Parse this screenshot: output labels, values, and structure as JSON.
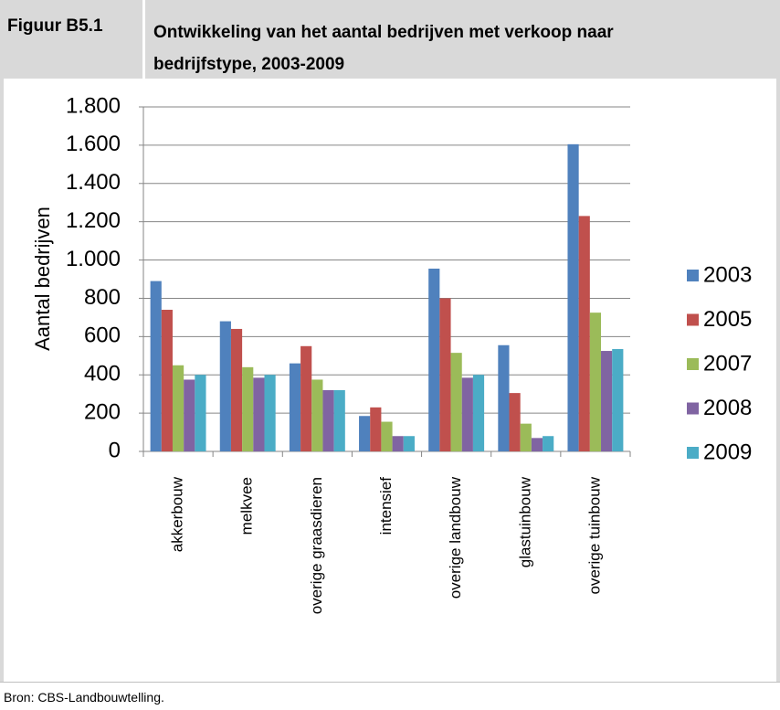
{
  "header": {
    "figure_label": "Figuur B5.1"
  },
  "footer": {
    "source": "Bron: CBS-Landbouwtelling."
  },
  "chart_data": {
    "type": "bar",
    "title": "Ontwikkeling van het aantal bedrijven met verkoop naar bedrijfstype, 2003-2009",
    "ylabel": "Aantal bedrijven",
    "categories": [
      "akkerbouw",
      "melkvee",
      "overige graasdieren",
      "intensief",
      "overige landbouw",
      "glastuinbouw",
      "overige tuinbouw"
    ],
    "series": [
      {
        "name": "2003",
        "color": "#4f81bd",
        "values": [
          890,
          680,
          460,
          185,
          955,
          555,
          1605
        ]
      },
      {
        "name": "2005",
        "color": "#c0504d",
        "values": [
          740,
          640,
          550,
          230,
          800,
          305,
          1230
        ]
      },
      {
        "name": "2007",
        "color": "#9bbb59",
        "values": [
          450,
          440,
          375,
          155,
          515,
          145,
          725
        ]
      },
      {
        "name": "2008",
        "color": "#8064a2",
        "values": [
          375,
          385,
          320,
          80,
          385,
          70,
          525
        ]
      },
      {
        "name": "2009",
        "color": "#4bacc6",
        "values": [
          400,
          400,
          320,
          80,
          400,
          80,
          535
        ]
      }
    ],
    "ylim": [
      0,
      1800
    ],
    "yticks": [
      0,
      200,
      400,
      600,
      800,
      {
        "value": 1000,
        "label": "1.000"
      },
      {
        "value": 1200,
        "label": "1.200"
      },
      {
        "value": 1400,
        "label": "1.400"
      },
      {
        "value": 1600,
        "label": "1.600"
      },
      {
        "value": 1800,
        "label": "1.800"
      }
    ],
    "grid": true,
    "legend": "right"
  }
}
